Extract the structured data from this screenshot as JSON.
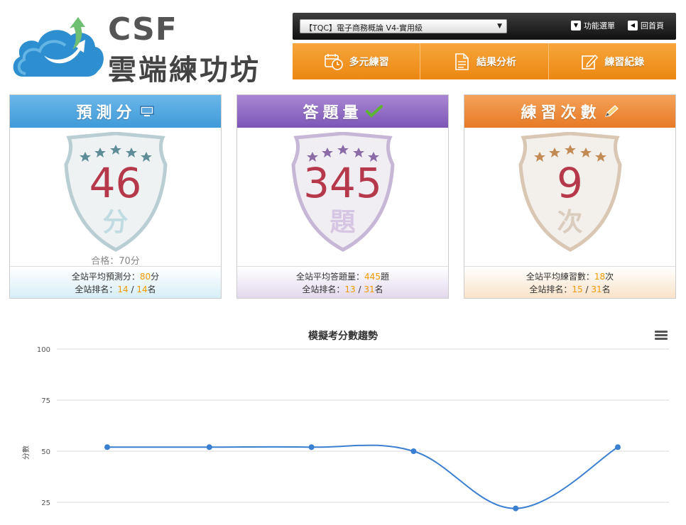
{
  "logo": {
    "abbr": "CSF",
    "name": "雲端練功坊"
  },
  "topbar": {
    "course_select": "【TQC】電子商務概論 V4-實用級",
    "menu_link": "功能選單",
    "home_link": "回首頁"
  },
  "nav": [
    {
      "label": "多元練習",
      "icon": "calendar-clock-icon"
    },
    {
      "label": "結果分析",
      "icon": "document-icon"
    },
    {
      "label": "練習紀錄",
      "icon": "edit-icon"
    }
  ],
  "cards": {
    "predict": {
      "title": "預測分",
      "icon": "monitor-icon",
      "value": "46",
      "unit": "分",
      "pass": "合格：70分",
      "avg_label": "全站平均預測分：",
      "avg_value": "80",
      "avg_unit": "分",
      "rank_label": "全站排名：",
      "rank": "14",
      "rank_sep": " / ",
      "rank_total": "14",
      "rank_unit": "名"
    },
    "answered": {
      "title": "答題量",
      "icon": "check-icon",
      "value": "345",
      "unit": "題",
      "avg_label": "全站平均答題量：",
      "avg_value": "445",
      "avg_unit": "題",
      "rank_label": "全站排名：",
      "rank": "13",
      "rank_sep": " / ",
      "rank_total": "31",
      "rank_unit": "名"
    },
    "practice": {
      "title": "練習次數",
      "icon": "pencil-icon",
      "value": "9",
      "unit": "次",
      "avg_label": "全站平均練習數：",
      "avg_value": "18",
      "avg_unit": "次",
      "rank_label": "全站排名：",
      "rank": "15",
      "rank_sep": " / ",
      "rank_total": "31",
      "rank_unit": "名"
    }
  },
  "colors": {
    "accent_orange": "#f39800",
    "number_red": "#b5394a",
    "line_blue": "#3a7fd0"
  },
  "chart_data": {
    "type": "line",
    "title": "模擬考分數趨勢",
    "ylabel": "分數",
    "xlabel": "",
    "ylim": [
      0,
      100
    ],
    "yticks": [
      25,
      50,
      75,
      100
    ],
    "grid": true,
    "series": [
      {
        "values": [
          52,
          52,
          52,
          50,
          22,
          52
        ]
      }
    ]
  }
}
